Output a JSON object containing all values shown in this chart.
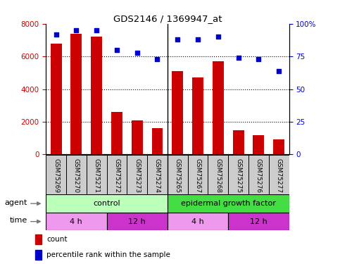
{
  "title": "GDS2146 / 1369947_at",
  "samples": [
    "GSM75269",
    "GSM75270",
    "GSM75271",
    "GSM75272",
    "GSM75273",
    "GSM75274",
    "GSM75265",
    "GSM75267",
    "GSM75268",
    "GSM75275",
    "GSM75276",
    "GSM75277"
  ],
  "counts": [
    6800,
    7400,
    7200,
    2600,
    2100,
    1600,
    5100,
    4700,
    5700,
    1500,
    1200,
    900
  ],
  "percentiles": [
    92,
    95,
    95,
    80,
    78,
    73,
    88,
    88,
    90,
    74,
    73,
    64
  ],
  "bar_color": "#cc0000",
  "dot_color": "#0000cc",
  "ylim_left": [
    0,
    8000
  ],
  "ylim_right": [
    0,
    100
  ],
  "yticks_left": [
    0,
    2000,
    4000,
    6000,
    8000
  ],
  "yticks_right": [
    0,
    25,
    50,
    75,
    100
  ],
  "agent_row": {
    "label": "agent",
    "groups": [
      {
        "text": "control",
        "start": 0,
        "end": 6,
        "color": "#bbffbb"
      },
      {
        "text": "epidermal growth factor",
        "start": 6,
        "end": 12,
        "color": "#44dd44"
      }
    ]
  },
  "time_row": {
    "label": "time",
    "groups": [
      {
        "text": "4 h",
        "start": 0,
        "end": 3,
        "color": "#ee99ee"
      },
      {
        "text": "12 h",
        "start": 3,
        "end": 6,
        "color": "#cc33cc"
      },
      {
        "text": "4 h",
        "start": 6,
        "end": 9,
        "color": "#ee99ee"
      },
      {
        "text": "12 h",
        "start": 9,
        "end": 12,
        "color": "#cc33cc"
      }
    ]
  },
  "legend": [
    {
      "label": "count",
      "color": "#cc0000"
    },
    {
      "label": "percentile rank within the sample",
      "color": "#0000cc"
    }
  ],
  "sample_box_color": "#cccccc",
  "plot_bg": "#ffffff"
}
